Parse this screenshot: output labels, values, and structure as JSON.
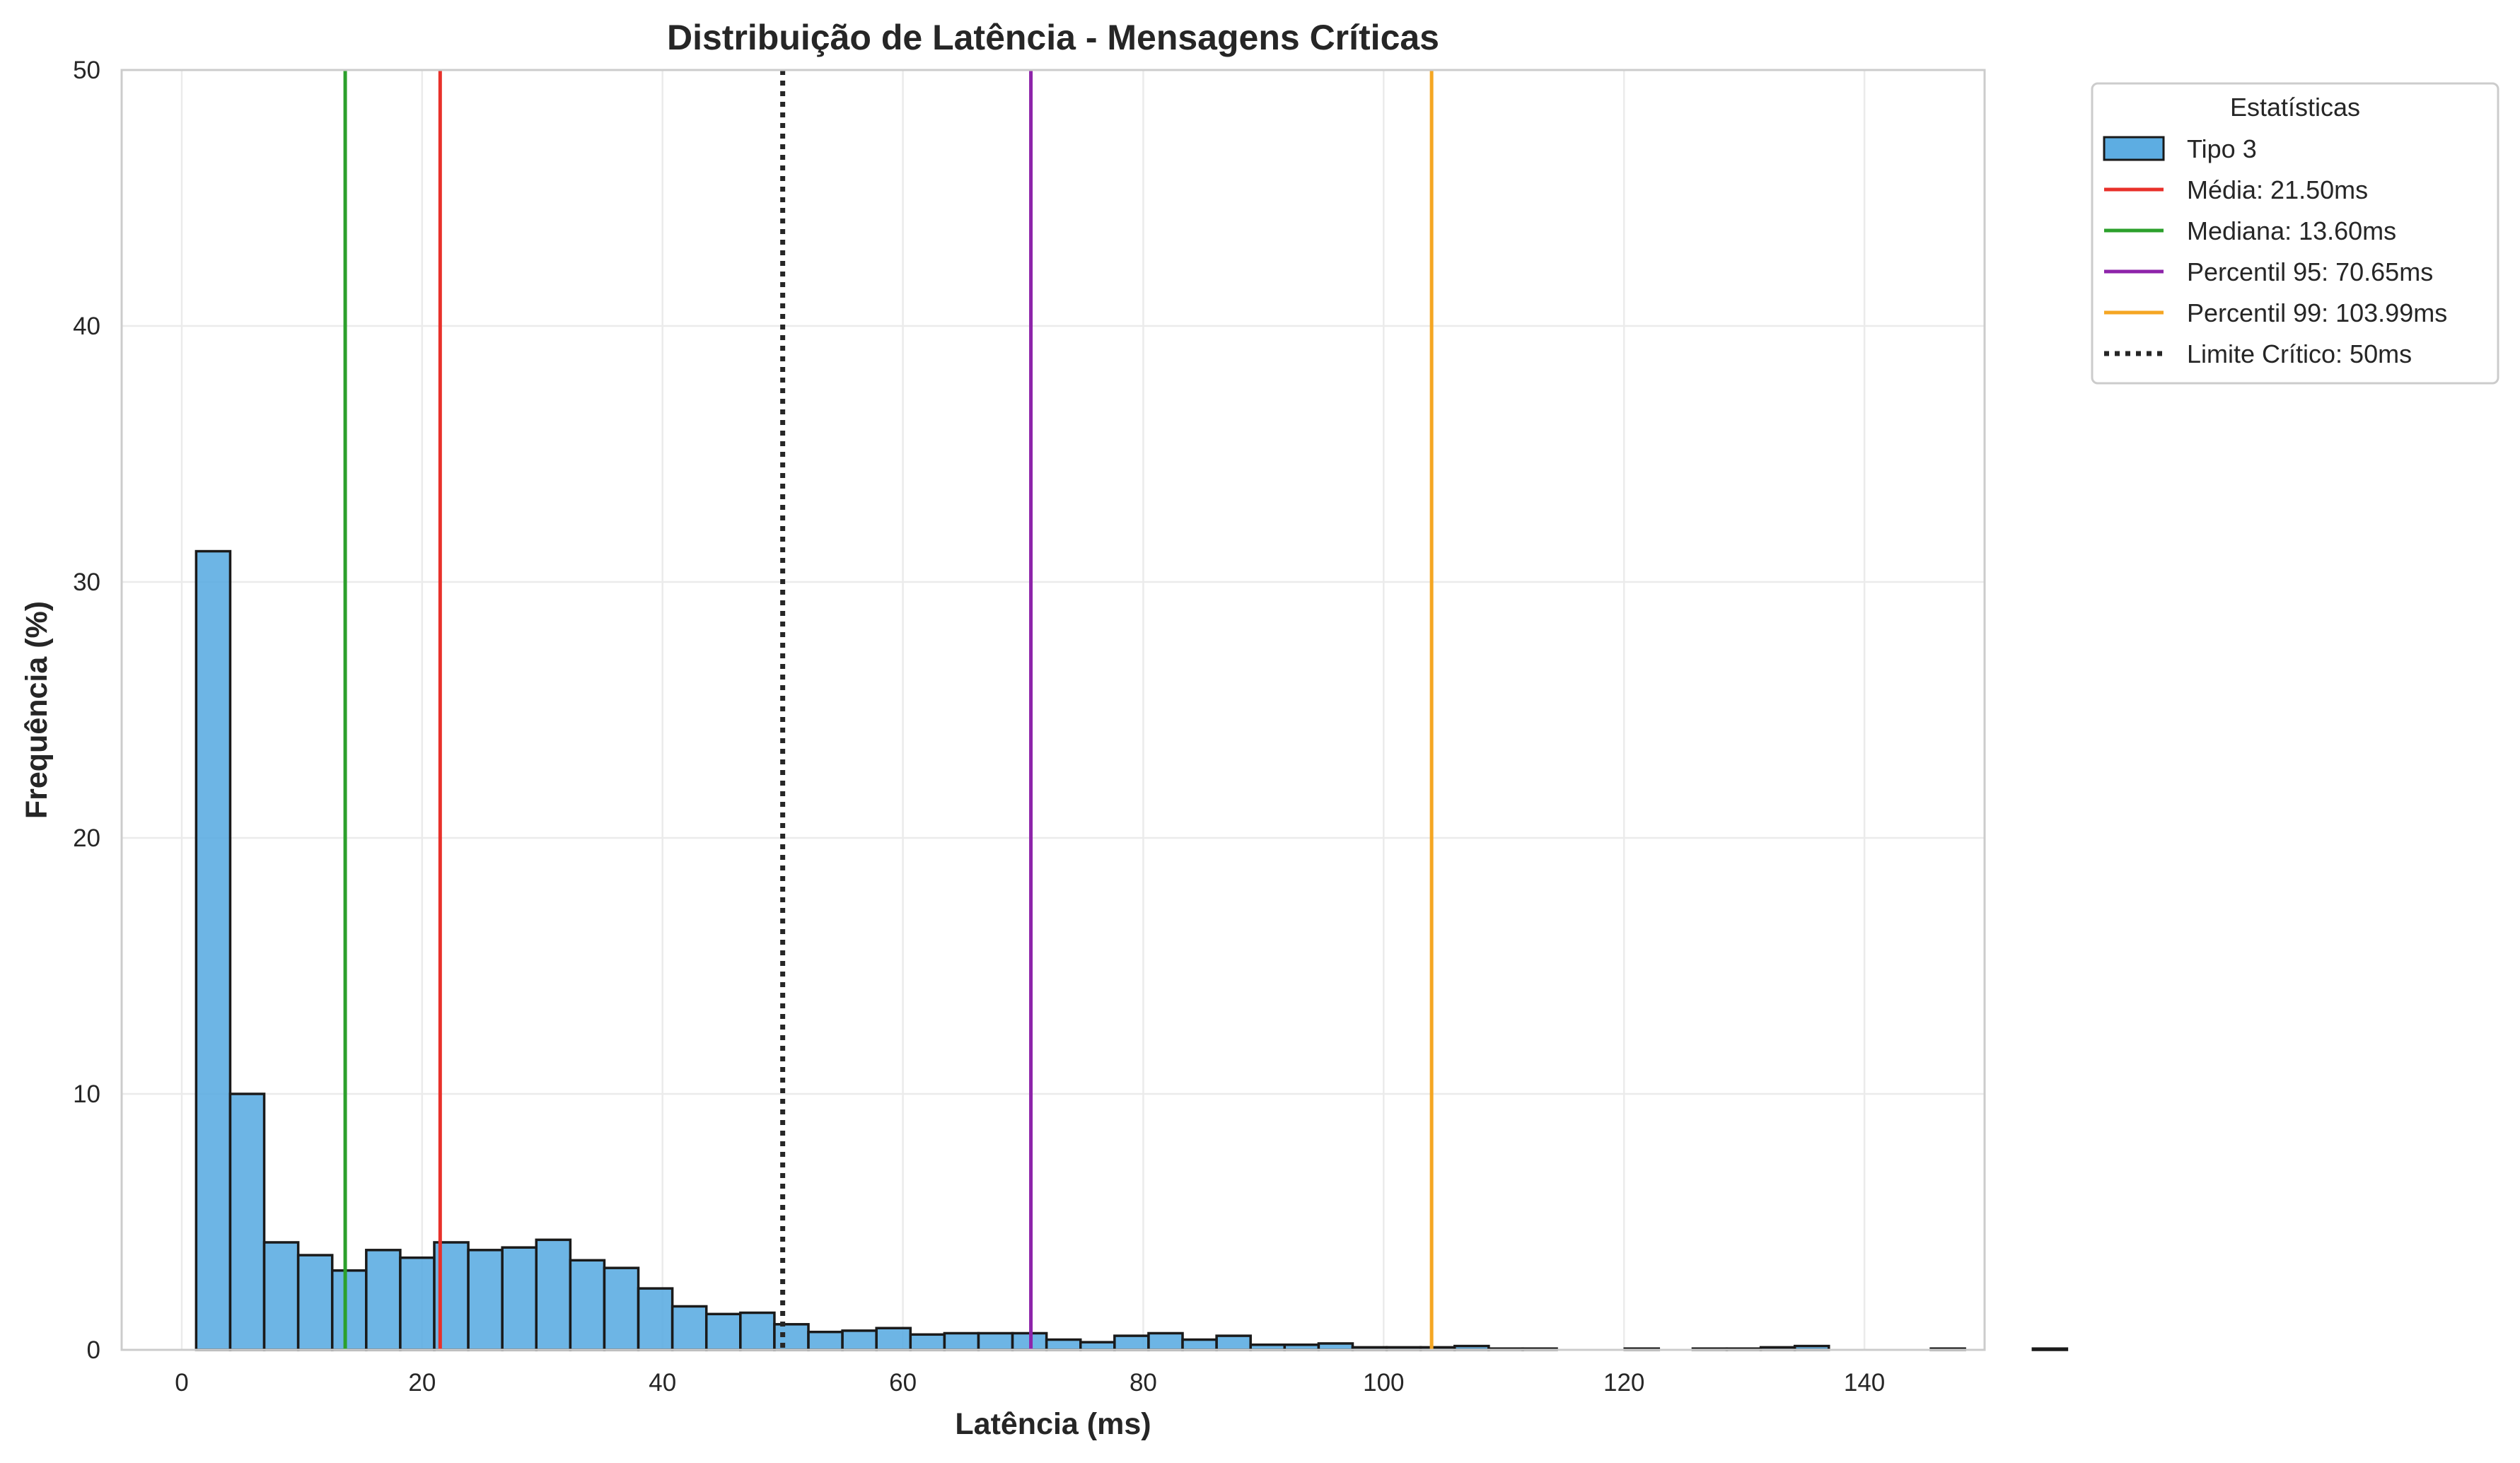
{
  "chart_data": {
    "type": "bar",
    "title": "Distribuição de Latência - Mensagens Críticas",
    "xlabel": "Latência (ms)",
    "ylabel": "Frequência (%)",
    "xlim": [
      -5,
      150
    ],
    "ylim": [
      0,
      50
    ],
    "x_ticks": [
      0,
      20,
      40,
      60,
      80,
      100,
      120,
      140
    ],
    "y_ticks": [
      0,
      10,
      20,
      30,
      40,
      50
    ],
    "grid": true,
    "legend_title": "Estatísticas",
    "legend_position": "outside-top-right",
    "bin_start": 1.2,
    "bin_width": 2.83,
    "series": [
      {
        "name": "Tipo 3",
        "color": "#5DADE2",
        "edgecolor": "#1a1a1a",
        "values": [
          31.2,
          10.0,
          4.2,
          3.7,
          3.1,
          3.9,
          3.6,
          4.2,
          3.9,
          4.0,
          4.3,
          3.5,
          3.2,
          2.4,
          1.7,
          1.4,
          1.45,
          1.0,
          0.7,
          0.75,
          0.85,
          0.6,
          0.65,
          0.65,
          0.65,
          0.4,
          0.3,
          0.55,
          0.65,
          0.4,
          0.55,
          0.2,
          0.2,
          0.25,
          0.1,
          0.1,
          0.1,
          0.15,
          0.05,
          0.05,
          0.0,
          0.0,
          0.05,
          0.0,
          0.05,
          0.05,
          0.1,
          0.15,
          0.0,
          0.0,
          0.0,
          0.05,
          0.0,
          0.0,
          0.05
        ]
      }
    ],
    "reference_lines": [
      {
        "name": "Média: 21.50ms",
        "x": 21.5,
        "color": "#e8302a",
        "style": "solid"
      },
      {
        "name": "Mediana: 13.60ms",
        "x": 13.6,
        "color": "#2ca02c",
        "style": "solid"
      },
      {
        "name": "Percentil 95: 70.65ms",
        "x": 70.65,
        "color": "#8e24aa",
        "style": "solid"
      },
      {
        "name": "Percentil 99: 103.99ms",
        "x": 103.99,
        "color": "#f5a623",
        "style": "solid"
      },
      {
        "name": "Limite Crítico: 50ms",
        "x": 50,
        "color": "#262626",
        "style": "dotted"
      }
    ]
  }
}
